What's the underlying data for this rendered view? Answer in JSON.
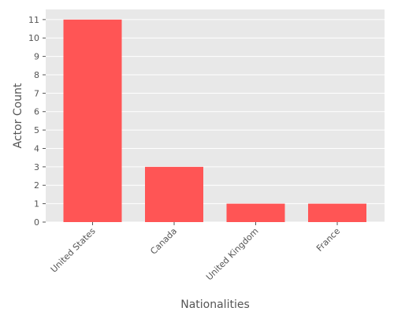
{
  "chart_data": {
    "type": "bar",
    "title": "",
    "xlabel": "Nationalities",
    "ylabel": "Actor Count",
    "categories": [
      "United States",
      "Canada",
      "United Kingdom",
      "France"
    ],
    "values": [
      11,
      3,
      1,
      1
    ],
    "ylim": [
      0,
      11.55
    ],
    "yticks": [
      0,
      1,
      2,
      3,
      4,
      5,
      6,
      7,
      8,
      9,
      10,
      11
    ],
    "grid": true,
    "legend": "none",
    "colors": {
      "bar": "#FF5555",
      "background": "#E8E8E8",
      "grid": "#FFFFFF",
      "text": "#555555"
    }
  }
}
